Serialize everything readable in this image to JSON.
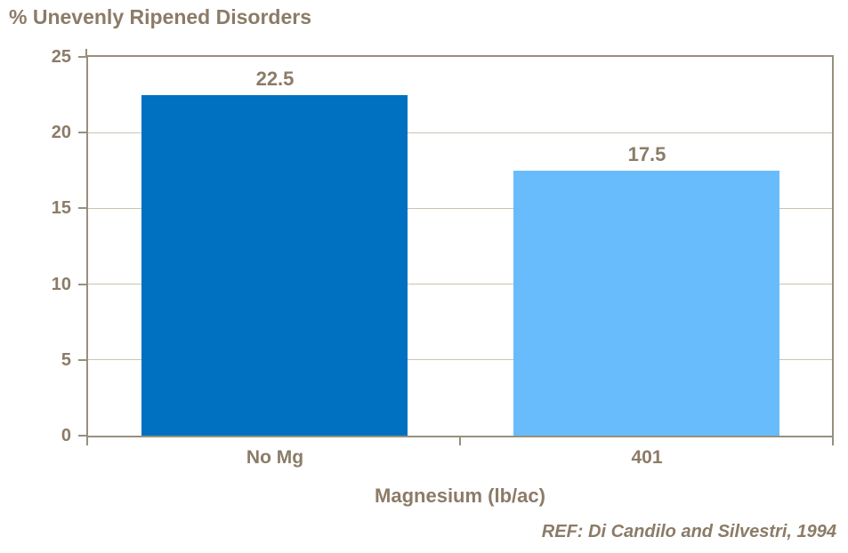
{
  "title": "% Unevenly Ripened Disorders",
  "colors": {
    "bar_no_mg": "#0070C0",
    "bar_401": "#69BCFC",
    "text": "#8C7B67",
    "gridline": "#CCC2B2",
    "axis": "#97907E",
    "background": "#FFFFFF"
  },
  "chart_data": {
    "type": "bar",
    "title": "% Unevenly Ripened Disorders",
    "categories": [
      "No Mg",
      "401"
    ],
    "values": [
      22.5,
      17.5
    ],
    "data_labels": [
      "22.5",
      "17.5"
    ],
    "bar_colors": [
      "#0070C0",
      "#69BCFC"
    ],
    "xlabel": "Magnesium (lb/ac)",
    "ylabel": "% Unevenly Ripened Disorders",
    "ylim": [
      0,
      25
    ],
    "yticks": [
      0,
      5,
      10,
      15,
      20,
      25
    ],
    "grid": "horizontal",
    "legend": "none",
    "annotation": "REF: Di Candilo and Silvestri, 1994"
  }
}
